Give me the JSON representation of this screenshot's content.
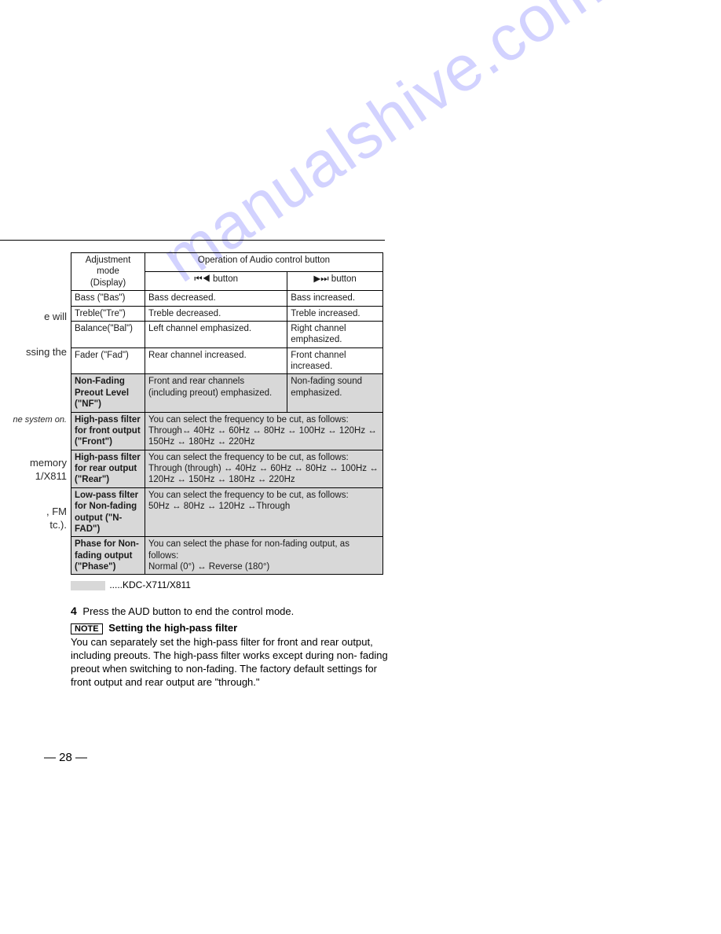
{
  "watermark": "manualshive.com",
  "left_fragments": [
    "e will",
    "ssing the",
    "ne system on.",
    "memory\n1/X811",
    ", FM\ntc.)."
  ],
  "table": {
    "header_mode_line1": "Adjustment",
    "header_mode_line2": "mode",
    "header_mode_line3": "(Display)",
    "header_op": "Operation of Audio control button",
    "header_prev": "⏮◀ button",
    "header_next": "▶⏭ button",
    "rows": [
      {
        "mode": "Bass (\"Bas\")",
        "left": "Bass decreased.",
        "right": "Bass increased.",
        "bold": false,
        "shaded": false,
        "span": false
      },
      {
        "mode": "Treble(\"Tre\")",
        "left": "Treble decreased.",
        "right": "Treble increased.",
        "bold": false,
        "shaded": false,
        "span": false
      },
      {
        "mode": "Balance(\"Bal\")",
        "left": "Left channel emphasized.",
        "right": "Right channel emphasized.",
        "bold": false,
        "shaded": false,
        "span": false
      },
      {
        "mode": "Fader (\"Fad\")",
        "left": "Rear channel increased.",
        "right": "Front channel increased.",
        "bold": false,
        "shaded": false,
        "span": false
      },
      {
        "mode": "Non-Fading Preout Level (\"NF\")",
        "left": "Front and rear channels (including preout) emphasized.",
        "right": "Non-fading sound emphasized.",
        "bold": true,
        "shaded": true,
        "span": false
      },
      {
        "mode": "High-pass filter for front output (\"Front\")",
        "left": "You can select the frequency to be cut, as follows:\nThrough↔ 40Hz ↔ 60Hz ↔ 80Hz ↔ 100Hz  ↔ 120Hz ↔ 150Hz  ↔ 180Hz ↔ 220Hz",
        "right": "",
        "bold": true,
        "shaded": true,
        "span": true
      },
      {
        "mode": "High-pass filter for rear output (\"Rear\")",
        "left": "You can select the frequency to be cut, as follows:\nThrough (through) ↔ 40Hz ↔ 60Hz ↔ 80Hz ↔ 100Hz  ↔ 120Hz ↔ 150Hz  ↔ 180Hz ↔ 220Hz",
        "right": "",
        "bold": true,
        "shaded": true,
        "span": true
      },
      {
        "mode": "Low-pass filter for Non-fading output (\"N-FAD\")",
        "left": "You can select the frequency to be cut, as follows:\n  50Hz ↔ 80Hz ↔ 120Hz ↔Through",
        "right": "",
        "bold": true,
        "shaded": true,
        "span": true
      },
      {
        "mode": "Phase for Non-fading output (\"Phase\")",
        "left": "You can select the phase for non-fading output, as follows:\nNormal (0°) ↔ Reverse (180°)",
        "right": "",
        "bold": true,
        "shaded": true,
        "span": true
      }
    ]
  },
  "footnote_model": ".....KDC-X711/X811",
  "step4_num": "4",
  "step4_text": "Press the AUD button to end the control mode.",
  "note_badge": "NOTE",
  "note_title": "Setting the high-pass filter",
  "note_body": "You can separately set the high-pass filter for front and rear output, including preouts. The high-pass filter works except during non- fading preout when switching to non-fading. The factory default settings for front output and rear output are \"through.\"",
  "page_number": "— 28 —"
}
